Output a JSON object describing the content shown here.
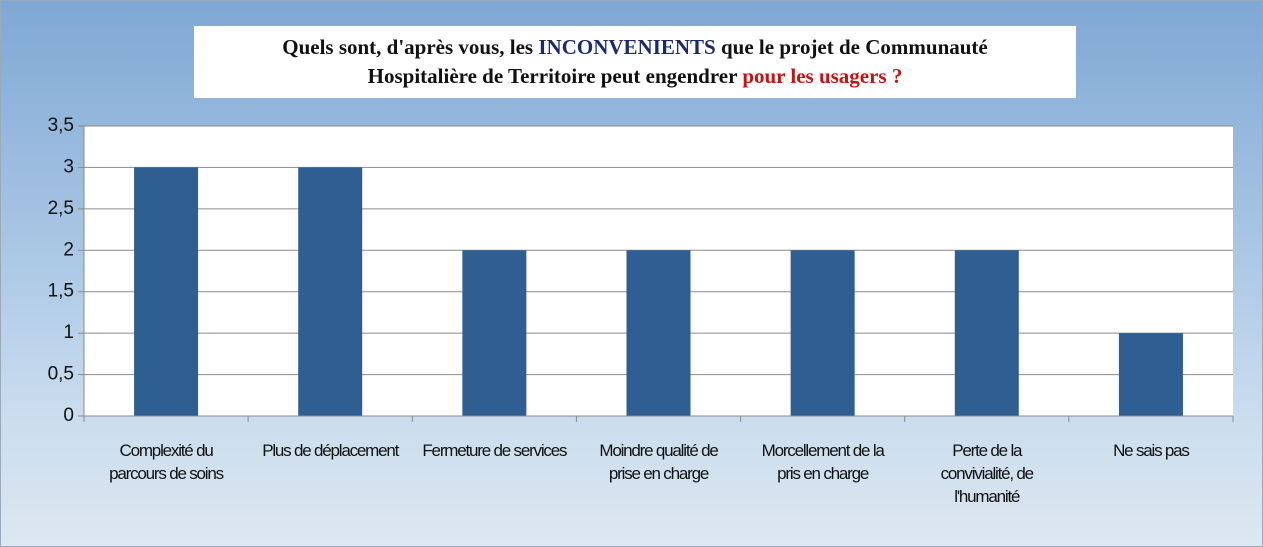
{
  "chart_data": {
    "type": "bar",
    "title": [
      [
        {
          "text": "Quels sont, d'après vous, les ",
          "color": "#111111"
        },
        {
          "text": "INCONVENIENTS",
          "color": "#1b2a6b"
        },
        {
          "text": " que le projet de Communauté",
          "color": "#111111"
        }
      ],
      [
        {
          "text": "Hospitalière de Territoire peut engendrer ",
          "color": "#111111"
        },
        {
          "text": "pour les usagers ?",
          "color": "#cc1111"
        }
      ]
    ],
    "categories": [
      "Complexité du parcours de soins",
      "Plus de déplacement",
      "Fermeture de services",
      "Moindre qualité de prise en charge",
      "Morcellement de la pris en charge",
      "Perte de la convivialité, de l'humanité",
      "Ne sais pas"
    ],
    "values": [
      3,
      3,
      2,
      2,
      2,
      2,
      1
    ],
    "color": "#2f5e92",
    "ylim": [
      0,
      3.5
    ],
    "yticks": [
      0,
      {
        "value": 0.5,
        "label": "0,5"
      },
      1,
      {
        "value": 1.5,
        "label": "1,5"
      },
      2,
      {
        "value": 2.5,
        "label": "2,5"
      },
      3,
      {
        "value": 3.5,
        "label": "3,5"
      }
    ],
    "grid": true
  }
}
